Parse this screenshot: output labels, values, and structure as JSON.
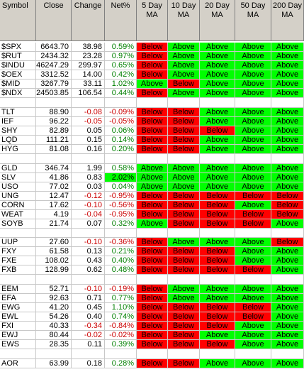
{
  "columns": [
    "Symbol",
    "Close",
    "Change",
    "Net%",
    "5 Day\nMA",
    "10 Day\nMA",
    "20 Day\nMA",
    "50 Day\nMA",
    "200 Day\nMA"
  ],
  "colors": {
    "above": "#00ff00",
    "below": "#ff0000",
    "positive_text": "#008000",
    "negative_text": "#cc0000",
    "header_bg": "#d4d0c8"
  },
  "groups": [
    [
      [
        "$SPX",
        "6643.70",
        "38.98",
        "0.59%",
        "Below",
        "Above",
        "Above",
        "Above",
        "Above"
      ],
      [
        "$RUT",
        "2434.32",
        "23.28",
        "0.97%",
        "Below",
        "Above",
        "Above",
        "Above",
        "Above"
      ],
      [
        "$INDU",
        "46247.29",
        "299.97",
        "0.65%",
        "Below",
        "Above",
        "Above",
        "Above",
        "Above"
      ],
      [
        "$OEX",
        "3312.52",
        "14.00",
        "0.42%",
        "Below",
        "Above",
        "Above",
        "Above",
        "Above"
      ],
      [
        "$MID",
        "3267.79",
        "33.11",
        "1.02%",
        "Above",
        "Below",
        "Above",
        "Above",
        "Above"
      ],
      [
        "$NDX",
        "24503.85",
        "106.54",
        "0.44%",
        "Below",
        "Above",
        "Above",
        "Above",
        "Above"
      ]
    ],
    [
      [
        "TLT",
        "88.90",
        "-0.08",
        "-0.09%",
        "Below",
        "Below",
        "Above",
        "Above",
        "Above"
      ],
      [
        "IEF",
        "96.22",
        "-0.05",
        "-0.05%",
        "Below",
        "Below",
        "Above",
        "Above",
        "Above"
      ],
      [
        "SHY",
        "82.89",
        "0.05",
        "0.06%",
        "Below",
        "Below",
        "Below",
        "Above",
        "Above"
      ],
      [
        "LQD",
        "111.21",
        "0.15",
        "0.14%",
        "Below",
        "Below",
        "Above",
        "Above",
        "Above"
      ],
      [
        "HYG",
        "81.08",
        "0.16",
        "0.20%",
        "Below",
        "Below",
        "Above",
        "Above",
        "Above"
      ]
    ],
    [
      [
        "GLD",
        "346.74",
        "1.99",
        "0.58%",
        "Above",
        "Above",
        "Above",
        "Above",
        "Above"
      ],
      [
        "SLV",
        "41.86",
        "0.83",
        "2.02%",
        "Above",
        "Above",
        "Above",
        "Above",
        "Above"
      ],
      [
        "USO",
        "77.02",
        "0.03",
        "0.04%",
        "Above",
        "Above",
        "Above",
        "Above",
        "Above"
      ],
      [
        "UNG",
        "12.47",
        "-0.12",
        "-0.95%",
        "Below",
        "Below",
        "Below",
        "Below",
        "Below"
      ],
      [
        "CORN",
        "17.62",
        "-0.10",
        "-0.56%",
        "Below",
        "Below",
        "Below",
        "Above",
        "Below"
      ],
      [
        "WEAT",
        "4.19",
        "-0.04",
        "-0.95%",
        "Below",
        "Below",
        "Below",
        "Below",
        "Below"
      ],
      [
        "SOYB",
        "21.74",
        "0.07",
        "0.32%",
        "Above",
        "Below",
        "Below",
        "Below",
        "Above"
      ]
    ],
    [
      [
        "UUP",
        "27.60",
        "-0.10",
        "-0.36%",
        "Below",
        "Above",
        "Above",
        "Above",
        "Below"
      ],
      [
        "FXY",
        "61.58",
        "0.13",
        "0.21%",
        "Below",
        "Below",
        "Below",
        "Above",
        "Above"
      ],
      [
        "FXE",
        "108.02",
        "0.43",
        "0.40%",
        "Below",
        "Below",
        "Below",
        "Above",
        "Above"
      ],
      [
        "FXB",
        "128.99",
        "0.62",
        "0.48%",
        "Below",
        "Below",
        "Below",
        "Below",
        "Above"
      ]
    ],
    [
      [
        "EEM",
        "52.71",
        "-0.10",
        "-0.19%",
        "Below",
        "Above",
        "Above",
        "Above",
        "Above"
      ],
      [
        "EFA",
        "92.63",
        "0.71",
        "0.77%",
        "Below",
        "Above",
        "Above",
        "Above",
        "Above"
      ],
      [
        "EWG",
        "41.20",
        "0.45",
        "1.10%",
        "Below",
        "Below",
        "Below",
        "Below",
        "Above"
      ],
      [
        "EWL",
        "54.26",
        "0.40",
        "0.74%",
        "Below",
        "Below",
        "Below",
        "Below",
        "Above"
      ],
      [
        "FXI",
        "40.33",
        "-0.34",
        "-0.84%",
        "Below",
        "Below",
        "Below",
        "Above",
        "Above"
      ],
      [
        "EWJ",
        "80.44",
        "-0.02",
        "-0.02%",
        "Below",
        "Below",
        "Above",
        "Above",
        "Above"
      ],
      [
        "EWS",
        "28.35",
        "0.11",
        "0.39%",
        "Below",
        "Below",
        "Below",
        "Above",
        "Above"
      ]
    ],
    [
      [
        "AOR",
        "63.99",
        "0.18",
        "0.28%",
        "Below",
        "Below",
        "Above",
        "Above",
        "Above"
      ]
    ]
  ],
  "highlight_cells": [
    "SLV:Net%"
  ]
}
